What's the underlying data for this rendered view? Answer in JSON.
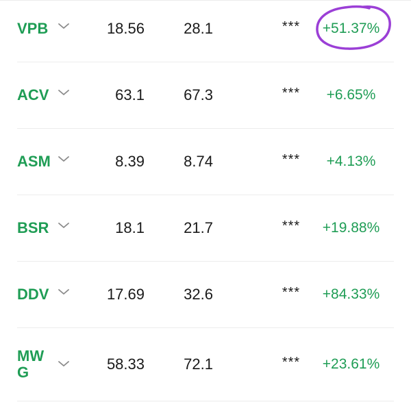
{
  "rows": [
    {
      "ticker": "VPB",
      "price_a": "18.56",
      "price_b": "28.1",
      "stars": "***",
      "change": "+51.37%",
      "highlighted": true
    },
    {
      "ticker": "ACV",
      "price_a": "63.1",
      "price_b": "67.3",
      "stars": "***",
      "change": "+6.65%"
    },
    {
      "ticker": "ASM",
      "price_a": "8.39",
      "price_b": "8.74",
      "stars": "***",
      "change": "+4.13%"
    },
    {
      "ticker": "BSR",
      "price_a": "18.1",
      "price_b": "21.7",
      "stars": "***",
      "change": "+19.88%"
    },
    {
      "ticker": "DDV",
      "price_a": "17.69",
      "price_b": "32.6",
      "stars": "***",
      "change": "+84.33%"
    },
    {
      "ticker": "MWG",
      "price_a": "58.33",
      "price_b": "72.1",
      "stars": "***",
      "change": "+23.61%"
    }
  ],
  "icons": {
    "expand": "chevron-down-icon",
    "annotation": "hand-drawn-circle"
  },
  "colors": {
    "ticker": "#1f9d55",
    "change_positive": "#1f9d55",
    "annotation": "#9b3fd6",
    "divider": "#ececec"
  }
}
